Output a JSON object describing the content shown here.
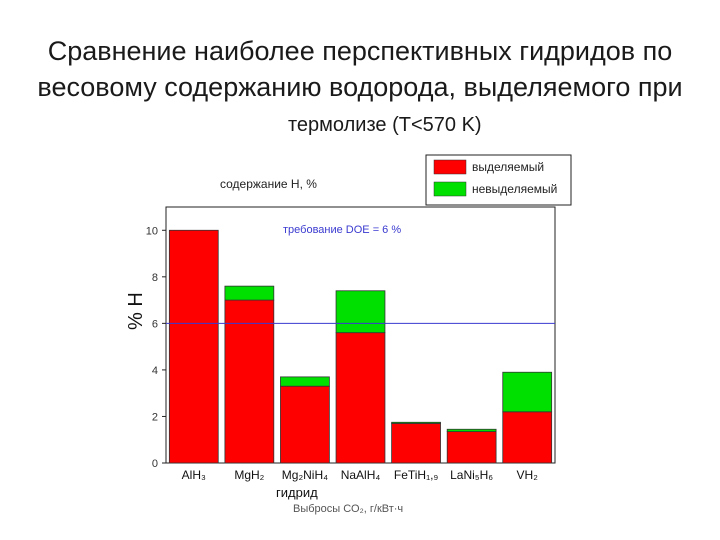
{
  "slide": {
    "title_line1": "Сравнение наиболее перспективных гидридов по",
    "title_line2": "весовому содержанию водорода, выделяемого при",
    "title_line3": "термолизе (T<570 K)",
    "footer_fragment": "Выбросы СО₂, г/кВт·ч"
  },
  "chart_data": {
    "type": "bar",
    "stacked": true,
    "categories": [
      "AlH₃",
      "MgH₂",
      "Mg₂NiH₄",
      "NaAlH₄",
      "FeTiH₁,₉",
      "LaNi₅H₆",
      "VH₂"
    ],
    "series": [
      {
        "name": "выделяемый",
        "color": "#ff0000",
        "values": [
          10.0,
          7.0,
          3.3,
          5.6,
          1.7,
          1.35,
          2.2
        ]
      },
      {
        "name": "невыделяемый",
        "color": "#00e000",
        "values": [
          0.0,
          0.6,
          0.4,
          1.8,
          0.05,
          0.1,
          1.7
        ]
      }
    ],
    "ylabel": "% H",
    "xlabel": "гидрид",
    "y_caption": "содержание H, %",
    "ylim": [
      0,
      11
    ],
    "yticks": [
      0,
      2,
      4,
      6,
      8,
      10
    ],
    "reference_line": {
      "value": 6,
      "label": "требование DOE = 6 %",
      "color": "#3a3ad0"
    },
    "legend_position": "top-right"
  }
}
